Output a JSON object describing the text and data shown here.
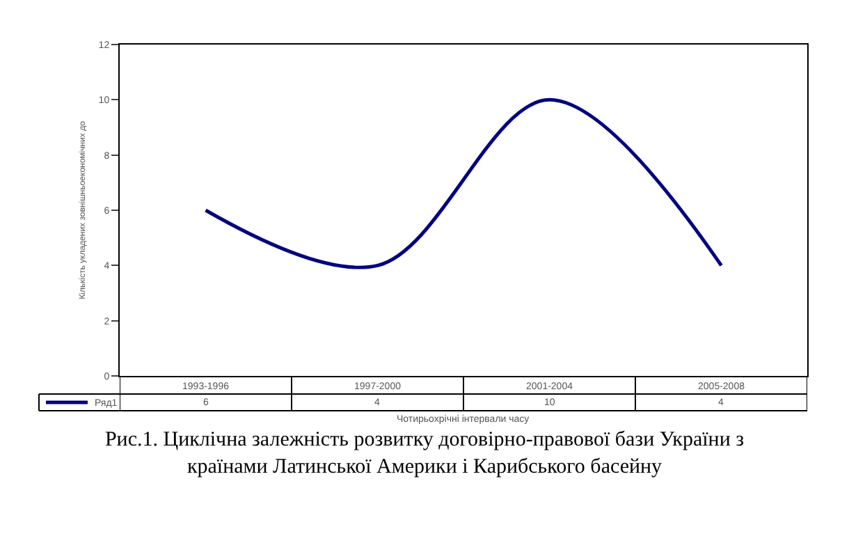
{
  "chart_data": {
    "type": "line",
    "title": "Рис.1. Циклічна залежність розвитку договірно-правової бази України з\nкраїнами Латинської Америки і Карибського басейну",
    "xlabel": "Чотирьохрічні інтервали часу",
    "ylabel": "Кількість укладених зовнішньоекономічних до",
    "categories": [
      "1993-1996",
      "1997-2000",
      "2001-2004",
      "2005-2008"
    ],
    "series": [
      {
        "name": "Ряд1",
        "color": "#000080",
        "values": [
          6,
          4,
          10,
          4
        ]
      }
    ],
    "ylim": [
      0,
      12
    ],
    "yticks": [
      0,
      2,
      4,
      6,
      8,
      10,
      12
    ],
    "legend": "bottom left",
    "data_labels": true,
    "marker": "none",
    "line_style": "solid"
  }
}
